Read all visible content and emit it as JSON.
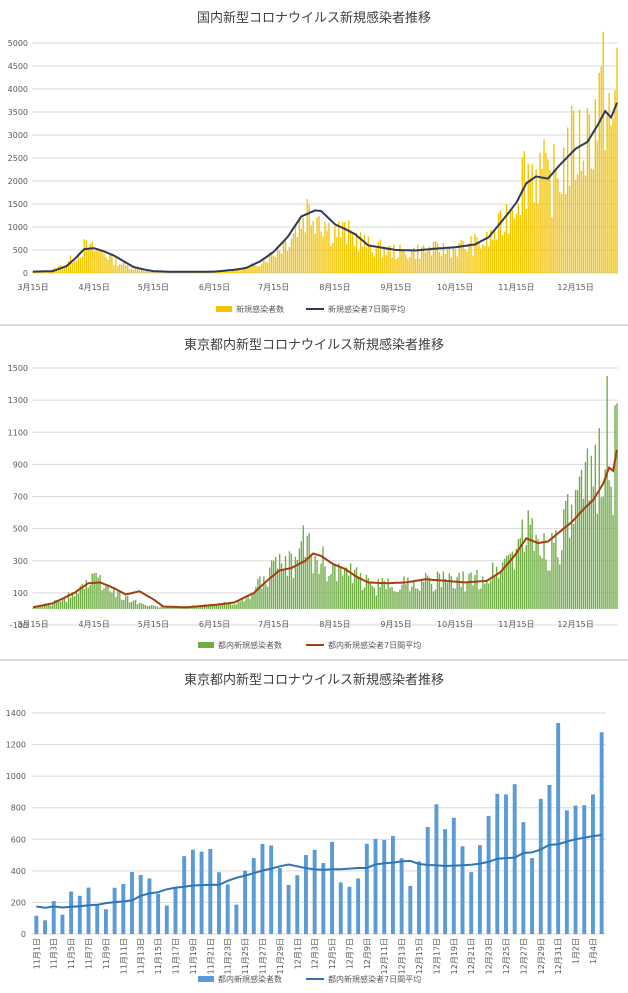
{
  "chart_data": [
    {
      "type": "bar",
      "title": "国内新型コロナウイルス新規感染者推移",
      "ylim": [
        0,
        5000
      ],
      "yticks": [
        0,
        500,
        1000,
        1500,
        2000,
        2500,
        3000,
        3500,
        4000,
        4500,
        5000
      ],
      "x_tick_labels": [
        "3月15日",
        "4月15日",
        "5月15日",
        "6月15日",
        "7月15日",
        "8月15日",
        "9月15日",
        "10月15日",
        "11月15日",
        "12月15日"
      ],
      "series": [
        {
          "name": "新規感染者数",
          "kind": "bar",
          "color": "#f5c400"
        },
        {
          "name": "新規感染者7日間平均",
          "kind": "line",
          "color": "#2e3a5c"
        }
      ],
      "daily_anchors": [
        [
          "03-15",
          45
        ],
        [
          "03-20",
          30
        ],
        [
          "03-25",
          80
        ],
        [
          "04-01",
          220
        ],
        [
          "04-05",
          400
        ],
        [
          "04-10",
          620
        ],
        [
          "04-15",
          560
        ],
        [
          "04-20",
          500
        ],
        [
          "04-25",
          300
        ],
        [
          "05-01",
          180
        ],
        [
          "05-05",
          110
        ],
        [
          "05-10",
          80
        ],
        [
          "05-15",
          45
        ],
        [
          "05-25",
          25
        ],
        [
          "06-05",
          35
        ],
        [
          "06-15",
          45
        ],
        [
          "06-25",
          80
        ],
        [
          "07-01",
          120
        ],
        [
          "07-08",
          260
        ],
        [
          "07-15",
          480
        ],
        [
          "07-22",
          800
        ],
        [
          "07-29",
          1280
        ],
        [
          "08-01",
          1520
        ],
        [
          "08-07",
          1450
        ],
        [
          "08-12",
          1050
        ],
        [
          "08-18",
          1000
        ],
        [
          "08-25",
          880
        ],
        [
          "09-01",
          650
        ],
        [
          "09-10",
          550
        ],
        [
          "09-20",
          480
        ],
        [
          "09-30",
          560
        ],
        [
          "10-10",
          560
        ],
        [
          "10-20",
          640
        ],
        [
          "10-31",
          750
        ],
        [
          "11-07",
          1100
        ],
        [
          "11-14",
          1750
        ],
        [
          "11-18",
          2350
        ],
        [
          "11-21",
          2500
        ],
        [
          "11-28",
          2450
        ],
        [
          "12-01",
          2100
        ],
        [
          "12-07",
          2400
        ],
        [
          "12-12",
          2950
        ],
        [
          "12-18",
          3100
        ],
        [
          "12-24",
          3600
        ],
        [
          "12-28",
          4200
        ],
        [
          "12-31",
          4500
        ],
        [
          "01-03",
          3000
        ],
        [
          "01-05",
          4900
        ]
      ],
      "avg_anchors": [
        [
          "03-15",
          30
        ],
        [
          "03-25",
          40
        ],
        [
          "04-01",
          150
        ],
        [
          "04-05",
          300
        ],
        [
          "04-10",
          520
        ],
        [
          "04-15",
          540
        ],
        [
          "04-20",
          470
        ],
        [
          "04-25",
          380
        ],
        [
          "05-01",
          230
        ],
        [
          "05-05",
          130
        ],
        [
          "05-10",
          80
        ],
        [
          "05-15",
          40
        ],
        [
          "05-25",
          25
        ],
        [
          "06-15",
          30
        ],
        [
          "06-25",
          70
        ],
        [
          "07-01",
          110
        ],
        [
          "07-08",
          250
        ],
        [
          "07-15",
          460
        ],
        [
          "07-22",
          780
        ],
        [
          "07-29",
          1230
        ],
        [
          "08-05",
          1360
        ],
        [
          "08-08",
          1350
        ],
        [
          "08-15",
          1060
        ],
        [
          "08-20",
          960
        ],
        [
          "08-25",
          850
        ],
        [
          "09-01",
          600
        ],
        [
          "09-15",
          500
        ],
        [
          "09-25",
          490
        ],
        [
          "10-05",
          530
        ],
        [
          "10-15",
          560
        ],
        [
          "10-25",
          620
        ],
        [
          "11-01",
          780
        ],
        [
          "11-10",
          1250
        ],
        [
          "11-15",
          1530
        ],
        [
          "11-20",
          1950
        ],
        [
          "11-25",
          2100
        ],
        [
          "12-01",
          2050
        ],
        [
          "12-07",
          2350
        ],
        [
          "12-15",
          2700
        ],
        [
          "12-21",
          2850
        ],
        [
          "12-26",
          3200
        ],
        [
          "12-30",
          3520
        ],
        [
          "01-02",
          3380
        ],
        [
          "01-05",
          3700
        ]
      ]
    },
    {
      "type": "bar",
      "title": "東京都内新型コロナウイルス新規感染者推移",
      "ylim": [
        -100,
        1500
      ],
      "yticks": [
        -100,
        100,
        300,
        500,
        700,
        900,
        1100,
        1300,
        1500
      ],
      "ytick_labels": [
        "-100",
        "100",
        "300",
        "500",
        "700",
        "900",
        "1100",
        "1300",
        "1500"
      ],
      "x_tick_labels": [
        "3月15日",
        "4月15日",
        "5月15日",
        "6月15日",
        "7月15日",
        "8月15日",
        "9月15日",
        "10月15日",
        "11月15日",
        "12月15日"
      ],
      "series": [
        {
          "name": "都内新規感染者数",
          "kind": "bar",
          "color": "#70ad47"
        },
        {
          "name": "都内新規感染者7日間平均",
          "kind": "line",
          "color": "#a0410d"
        }
      ],
      "daily_anchors": [
        [
          "03-15",
          8
        ],
        [
          "03-25",
          40
        ],
        [
          "04-01",
          70
        ],
        [
          "04-06",
          140
        ],
        [
          "04-11",
          180
        ],
        [
          "04-17",
          200
        ],
        [
          "04-22",
          150
        ],
        [
          "04-28",
          90
        ],
        [
          "05-05",
          60
        ],
        [
          "05-10",
          30
        ],
        [
          "05-20",
          10
        ],
        [
          "06-01",
          15
        ],
        [
          "06-15",
          30
        ],
        [
          "06-25",
          45
        ],
        [
          "07-01",
          60
        ],
        [
          "07-05",
          120
        ],
        [
          "07-10",
          230
        ],
        [
          "07-17",
          270
        ],
        [
          "07-24",
          300
        ],
        [
          "07-31",
          460
        ],
        [
          "08-06",
          340
        ],
        [
          "08-12",
          300
        ],
        [
          "08-20",
          250
        ],
        [
          "08-28",
          200
        ],
        [
          "09-05",
          150
        ],
        [
          "09-15",
          170
        ],
        [
          "09-25",
          190
        ],
        [
          "10-05",
          200
        ],
        [
          "10-15",
          180
        ],
        [
          "10-25",
          200
        ],
        [
          "11-01",
          220
        ],
        [
          "11-07",
          300
        ],
        [
          "11-14",
          400
        ],
        [
          "11-19",
          530
        ],
        [
          "11-26",
          480
        ],
        [
          "12-01",
          400
        ],
        [
          "12-07",
          500
        ],
        [
          "12-12",
          600
        ],
        [
          "12-17",
          700
        ],
        [
          "12-24",
          880
        ],
        [
          "12-31",
          1330
        ],
        [
          "01-03",
          820
        ],
        [
          "01-05",
          1280
        ]
      ],
      "avg_anchors": [
        [
          "03-15",
          10
        ],
        [
          "03-25",
          35
        ],
        [
          "04-05",
          100
        ],
        [
          "04-12",
          160
        ],
        [
          "04-18",
          165
        ],
        [
          "04-25",
          130
        ],
        [
          "05-01",
          90
        ],
        [
          "05-08",
          110
        ],
        [
          "05-15",
          60
        ],
        [
          "05-20",
          15
        ],
        [
          "06-01",
          10
        ],
        [
          "06-15",
          25
        ],
        [
          "06-25",
          40
        ],
        [
          "07-05",
          100
        ],
        [
          "07-12",
          180
        ],
        [
          "07-18",
          240
        ],
        [
          "07-24",
          255
        ],
        [
          "07-31",
          300
        ],
        [
          "08-04",
          345
        ],
        [
          "08-08",
          330
        ],
        [
          "08-14",
          280
        ],
        [
          "08-20",
          250
        ],
        [
          "08-26",
          200
        ],
        [
          "09-01",
          165
        ],
        [
          "09-10",
          160
        ],
        [
          "09-20",
          165
        ],
        [
          "09-30",
          185
        ],
        [
          "10-10",
          175
        ],
        [
          "10-20",
          165
        ],
        [
          "10-31",
          175
        ],
        [
          "11-07",
          230
        ],
        [
          "11-14",
          330
        ],
        [
          "11-20",
          440
        ],
        [
          "11-26",
          410
        ],
        [
          "12-01",
          420
        ],
        [
          "12-07",
          480
        ],
        [
          "12-13",
          540
        ],
        [
          "12-19",
          620
        ],
        [
          "12-24",
          680
        ],
        [
          "12-29",
          780
        ],
        [
          "01-01",
          880
        ],
        [
          "01-03",
          860
        ],
        [
          "01-05",
          990
        ]
      ]
    },
    {
      "type": "bar",
      "title": "東京都内新型コロナウイルス新規感染者推移",
      "ylim": [
        0,
        1400
      ],
      "yticks": [
        0,
        200,
        400,
        600,
        800,
        1000,
        1200,
        1400
      ],
      "categories": [
        "11月1日",
        "11月2日",
        "11月3日",
        "11月4日",
        "11月5日",
        "11月6日",
        "11月7日",
        "11月8日",
        "11月9日",
        "11月10日",
        "11月11日",
        "11月12日",
        "11月13日",
        "11月14日",
        "11月15日",
        "11月16日",
        "11月17日",
        "11月18日",
        "11月19日",
        "11月20日",
        "11月21日",
        "11月22日",
        "11月23日",
        "11月24日",
        "11月25日",
        "11月26日",
        "11月27日",
        "11月28日",
        "11月29日",
        "11月30日",
        "12月1日",
        "12月2日",
        "12月3日",
        "12月4日",
        "12月5日",
        "12月6日",
        "12月7日",
        "12月8日",
        "12月9日",
        "12月10日",
        "12月11日",
        "12月12日",
        "12月13日",
        "12月14日",
        "12月15日",
        "12月16日",
        "12月17日",
        "12月18日",
        "12月19日",
        "12月20日",
        "12月21日",
        "12月22日",
        "12月23日",
        "12月24日",
        "12月25日",
        "12月26日",
        "12月27日",
        "12月28日",
        "12月29日",
        "12月30日",
        "12月31日",
        "1月1日",
        "1月2日",
        "1月3日",
        "1月4日",
        "1月5日"
      ],
      "shown_tick_labels": [
        "11月1日",
        "11月3日",
        "11月5日",
        "11月7日",
        "11月9日",
        "11月11日",
        "11月13日",
        "11月15日",
        "11月17日",
        "11月19日",
        "11月21日",
        "11月23日",
        "11月25日",
        "11月27日",
        "11月29日",
        "12月1日",
        "12月3日",
        "12月5日",
        "12月7日",
        "12月9日",
        "12月11日",
        "12月13日",
        "12月15日",
        "12月17日",
        "12月19日",
        "12月21日",
        "12月23日",
        "12月25日",
        "12月27日",
        "12月29日",
        "12月31日",
        "1月2日",
        "1月4日"
      ],
      "series": [
        {
          "name": "都内新規感染者数",
          "kind": "bar",
          "color": "#5b9bd5",
          "values": [
            116,
            87,
            209,
            122,
            269,
            242,
            294,
            189,
            157,
            293,
            317,
            393,
            374,
            352,
            255,
            180,
            298,
            493,
            534,
            522,
            539,
            391,
            314,
            186,
            401,
            481,
            570,
            561,
            418,
            311,
            372,
            500,
            533,
            449,
            584,
            327,
            299,
            352,
            572,
            602,
            595,
            621,
            480,
            305,
            460,
            678,
            822,
            664,
            736,
            556,
            392,
            563,
            748,
            888,
            884,
            949,
            708,
            481,
            856,
            944,
            1337,
            783,
            814,
            816,
            884,
            1278
          ]
        },
        {
          "name": "都内新規感染者7日間平均",
          "kind": "line",
          "color": "#2e75b6",
          "values": [
            174,
            166,
            175,
            168,
            172,
            176,
            182,
            185,
            196,
            202,
            206,
            213,
            242,
            257,
            265,
            283,
            294,
            299,
            307,
            310,
            312,
            311,
            337,
            356,
            370,
            385,
            402,
            414,
            429,
            440,
            429,
            417,
            409,
            407,
            410,
            410,
            414,
            418,
            418,
            441,
            448,
            452,
            460,
            463,
            444,
            437,
            435,
            431,
            433,
            435,
            439,
            446,
            457,
            477,
            481,
            484,
            513,
            517,
            536,
            565,
            569,
            586,
            600,
            610,
            620,
            627
          ]
        }
      ]
    }
  ],
  "legend_p0": {
    "bar": "新規感染者数",
    "line": "新規感染者7日間平均"
  },
  "legend_p1": {
    "bar": "都内新規感染者数",
    "line": "都内新規感染者7日間平均"
  },
  "legend_p2": {
    "bar": "都内新規感染者数",
    "line": "都内新規感染者7日間平均"
  }
}
